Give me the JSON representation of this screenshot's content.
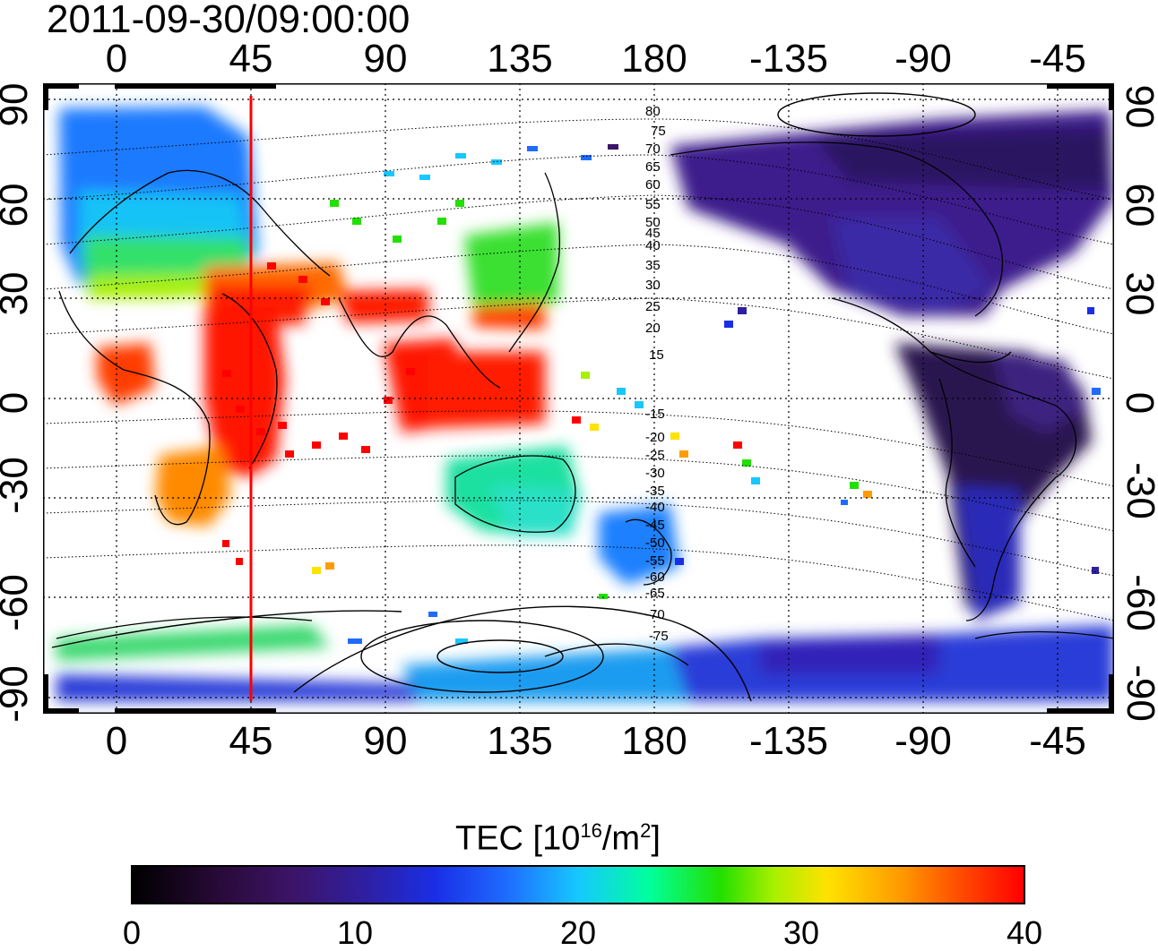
{
  "timestamp": "2011-09-30/09:00:00",
  "map": {
    "x_ticks_top": [
      "0",
      "45",
      "90",
      "135",
      "180",
      "-135",
      "-90",
      "-45"
    ],
    "x_ticks_bottom": [
      "0",
      "45",
      "90",
      "135",
      "180",
      "-135",
      "-90",
      "-45"
    ],
    "y_ticks_left": [
      "90",
      "60",
      "30",
      "0",
      "-30",
      "-60",
      "-90"
    ],
    "y_ticks_right": [
      "90",
      "60",
      "30",
      "0",
      "-30",
      "-60",
      "-90"
    ],
    "longitude_range": [
      -20,
      330
    ],
    "latitude_range": [
      -100,
      100
    ],
    "gridlines": "dotted",
    "marker_longitude": 45,
    "marker_color": "#ff0000",
    "contour_labels": [
      "80",
      "75",
      "70",
      "65",
      "60",
      "55",
      "50",
      "45",
      "40",
      "35",
      "30",
      "25",
      "20",
      "15",
      "-15",
      "-20",
      "-25",
      "-30",
      "-35",
      "-40",
      "-45",
      "-50",
      "-55",
      "-60",
      "-65",
      "-70",
      "-75"
    ]
  },
  "colorbar": {
    "title_prefix": "TEC  [10",
    "title_exp1": "16",
    "title_mid": "/m",
    "title_exp2": "2",
    "title_suffix": "]",
    "ticks": [
      "0",
      "10",
      "20",
      "30",
      "40"
    ],
    "range": [
      0,
      40
    ]
  }
}
